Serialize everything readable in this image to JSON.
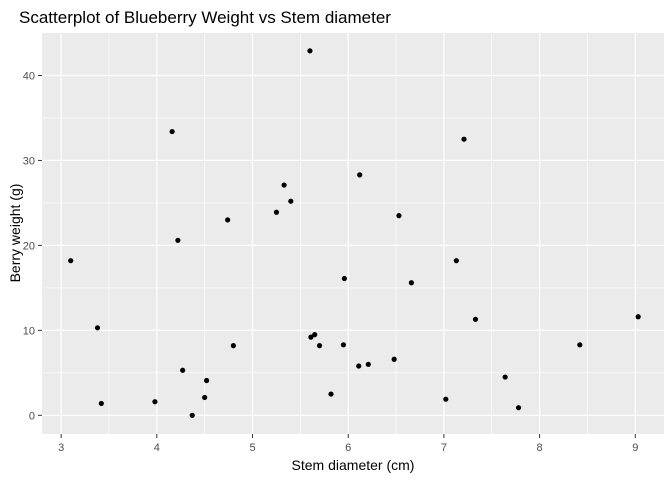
{
  "chart_data": {
    "type": "scatter",
    "title": "Scatterplot of Blueberry Weight vs Stem diameter",
    "xlabel": "Stem diameter (cm)",
    "ylabel": "Berry weight (g)",
    "xlim": [
      2.8,
      9.3
    ],
    "ylim": [
      -2.2,
      45.0
    ],
    "x_ticks": [
      3,
      4,
      5,
      6,
      7,
      8,
      9
    ],
    "y_ticks": [
      0,
      10,
      20,
      30,
      40
    ],
    "grid": true,
    "legend": "none",
    "colors": {
      "panel": "#ebebeb",
      "grid": "#ffffff",
      "point": "#000000",
      "tick": "#4d4d4d"
    },
    "points": [
      {
        "x": 3.1,
        "y": 18.2
      },
      {
        "x": 3.38,
        "y": 10.3
      },
      {
        "x": 3.42,
        "y": 1.4
      },
      {
        "x": 3.98,
        "y": 1.6
      },
      {
        "x": 4.16,
        "y": 33.4
      },
      {
        "x": 4.22,
        "y": 20.6
      },
      {
        "x": 4.27,
        "y": 5.3
      },
      {
        "x": 4.37,
        "y": 0.0
      },
      {
        "x": 4.5,
        "y": 2.1
      },
      {
        "x": 4.52,
        "y": 4.1
      },
      {
        "x": 4.74,
        "y": 23.0
      },
      {
        "x": 4.8,
        "y": 8.2
      },
      {
        "x": 5.25,
        "y": 23.9
      },
      {
        "x": 5.33,
        "y": 27.1
      },
      {
        "x": 5.4,
        "y": 25.2
      },
      {
        "x": 5.6,
        "y": 42.9
      },
      {
        "x": 5.61,
        "y": 9.2
      },
      {
        "x": 5.65,
        "y": 9.5
      },
      {
        "x": 5.7,
        "y": 8.2
      },
      {
        "x": 5.82,
        "y": 2.5
      },
      {
        "x": 5.95,
        "y": 8.3
      },
      {
        "x": 5.96,
        "y": 16.1
      },
      {
        "x": 6.11,
        "y": 5.8
      },
      {
        "x": 6.12,
        "y": 28.3
      },
      {
        "x": 6.21,
        "y": 6.0
      },
      {
        "x": 6.48,
        "y": 6.6
      },
      {
        "x": 6.53,
        "y": 23.5
      },
      {
        "x": 6.66,
        "y": 15.6
      },
      {
        "x": 7.02,
        "y": 1.9
      },
      {
        "x": 7.13,
        "y": 18.2
      },
      {
        "x": 7.21,
        "y": 32.5
      },
      {
        "x": 7.33,
        "y": 11.3
      },
      {
        "x": 7.64,
        "y": 4.5
      },
      {
        "x": 7.78,
        "y": 0.9
      },
      {
        "x": 8.42,
        "y": 8.3
      },
      {
        "x": 9.03,
        "y": 11.6
      }
    ]
  }
}
